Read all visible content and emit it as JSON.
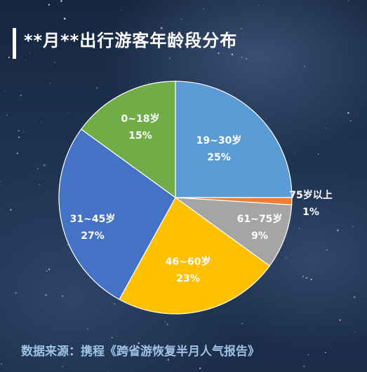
{
  "title": "**月**出行游客年龄段分布",
  "source": "数据来源：携程《跨省游恢复半月人气报告》",
  "chart_data": {
    "type": "pie",
    "title": "**月**出行游客年龄段分布",
    "categories": [
      "19~30岁",
      "75岁以上",
      "61~75岁",
      "46~60岁",
      "31~45岁",
      "0~18岁"
    ],
    "values": [
      25,
      1,
      9,
      23,
      27,
      15
    ],
    "value_labels": [
      "25%",
      "1%",
      "9%",
      "23%",
      "27%",
      "15%"
    ],
    "colors": [
      "#5b9bd5",
      "#ed7d31",
      "#a5a5a5",
      "#ffc000",
      "#4472c4",
      "#70ad47"
    ],
    "label_colors": [
      "#ffffff",
      "#ffffff",
      "#ffffff",
      "#ffffff",
      "#ffffff",
      "#ffffff"
    ],
    "start_angle_deg": 0,
    "legend": "none"
  }
}
